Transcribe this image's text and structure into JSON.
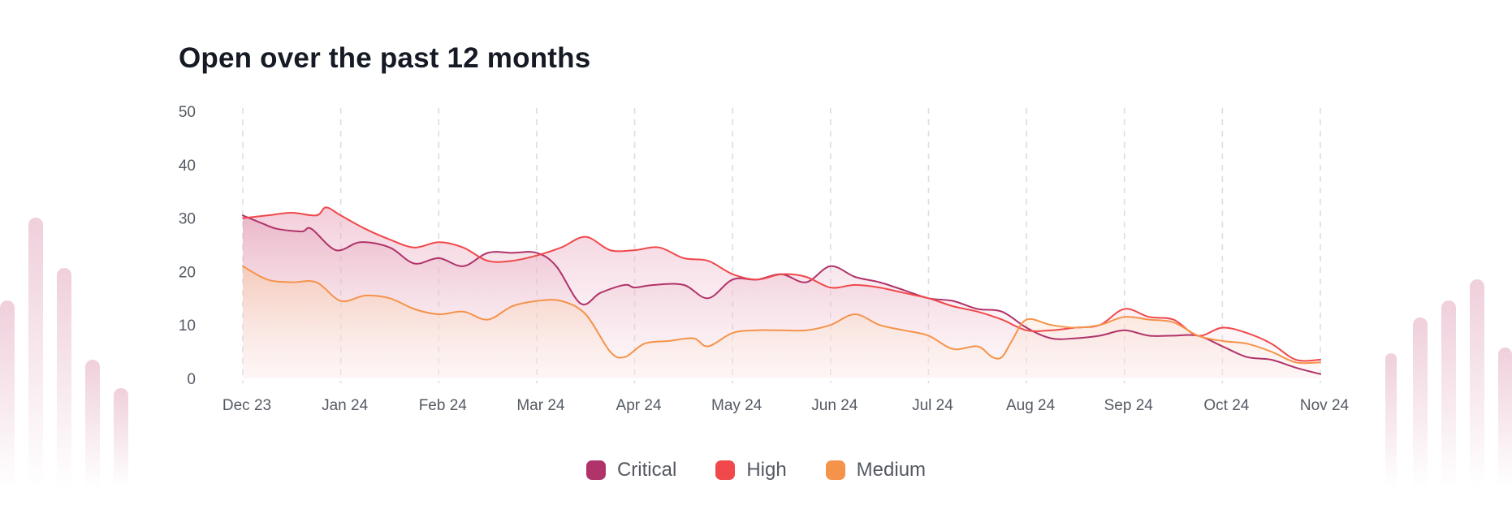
{
  "title": "Open over the past 12 months",
  "colors": {
    "critical": "#b0336a",
    "high": "#f0484b",
    "medium": "#f5934a",
    "grid": "#dcdde2",
    "text": "#555a63"
  },
  "chart_data": {
    "type": "line",
    "title": "Open over the past 12 months",
    "xlabel": "",
    "ylabel": "",
    "ylim": [
      0,
      50
    ],
    "yticks": [
      "0",
      "10",
      "20",
      "30",
      "40",
      "50"
    ],
    "categories": [
      "Dec 23",
      "Jan 24",
      "Feb 24",
      "Mar 24",
      "Apr 24",
      "May 24",
      "Jun 24",
      "Jul 24",
      "Aug 24",
      "Sep 24",
      "Oct 24",
      "Nov 24"
    ],
    "grid": "vertical-dashed",
    "legend": "bottom-center",
    "series": [
      {
        "name": "Critical",
        "color": "#b0336a",
        "x": [
          0,
          0.2,
          0.35,
          0.6,
          0.7,
          0.95,
          1.2,
          1.5,
          1.75,
          2.0,
          2.25,
          2.5,
          2.75,
          3.0,
          3.2,
          3.45,
          3.65,
          3.9,
          4.0,
          4.2,
          4.5,
          4.75,
          5.0,
          5.25,
          5.5,
          5.75,
          6.0,
          6.25,
          6.5,
          6.75,
          7.0,
          7.25,
          7.5,
          7.75,
          8.0,
          8.25,
          8.5,
          8.75,
          9.0,
          9.25,
          9.5,
          9.75,
          10.0,
          10.25,
          10.5,
          10.75,
          11.0
        ],
        "values": [
          30.5,
          29,
          28,
          27.5,
          28,
          24,
          25.5,
          24.5,
          21.5,
          22.5,
          21,
          23.5,
          23.5,
          23.5,
          21,
          14,
          16,
          17.5,
          17,
          17.5,
          17.5,
          15,
          18.5,
          18.5,
          19.5,
          18,
          21,
          19,
          18,
          16.5,
          15,
          14.5,
          13,
          12.5,
          9.5,
          7.5,
          7.5,
          8,
          9,
          8,
          8,
          8,
          6,
          4,
          3.5,
          2,
          0.8
        ]
      },
      {
        "name": "High",
        "color": "#f0484b",
        "x": [
          0,
          0.25,
          0.5,
          0.75,
          0.85,
          1.0,
          1.25,
          1.5,
          1.75,
          2.0,
          2.25,
          2.5,
          2.75,
          3.0,
          3.25,
          3.5,
          3.75,
          4.0,
          4.25,
          4.5,
          4.75,
          5.0,
          5.25,
          5.5,
          5.75,
          6.0,
          6.25,
          6.5,
          6.75,
          7.0,
          7.25,
          7.5,
          7.75,
          8.0,
          8.25,
          8.5,
          8.75,
          9.0,
          9.25,
          9.5,
          9.75,
          10.0,
          10.25,
          10.5,
          10.75,
          11.0
        ],
        "values": [
          30,
          30.5,
          31,
          30.5,
          32,
          30.5,
          28,
          26,
          24.5,
          25.5,
          24.5,
          22,
          22,
          23,
          24.5,
          26.5,
          24,
          24,
          24.5,
          22.5,
          22,
          19.5,
          18.5,
          19.5,
          19,
          17,
          17.5,
          17,
          16,
          15,
          13.5,
          12.5,
          11,
          9,
          9,
          9.5,
          10,
          13,
          11.5,
          11,
          8,
          9.5,
          8.5,
          6.5,
          3.5,
          3.5
        ]
      },
      {
        "name": "Medium",
        "color": "#f5934a",
        "x": [
          0,
          0.25,
          0.5,
          0.75,
          1.0,
          1.25,
          1.5,
          1.75,
          2.0,
          2.25,
          2.5,
          2.75,
          3.0,
          3.25,
          3.5,
          3.75,
          3.9,
          4.1,
          4.35,
          4.6,
          4.75,
          5.0,
          5.25,
          5.5,
          5.75,
          6.0,
          6.25,
          6.5,
          6.75,
          7.0,
          7.25,
          7.5,
          7.65,
          7.75,
          7.85,
          8.0,
          8.25,
          8.5,
          8.75,
          9.0,
          9.25,
          9.5,
          9.75,
          10.0,
          10.25,
          10.5,
          10.75,
          11.0
        ],
        "values": [
          21,
          18.5,
          18,
          18,
          14.5,
          15.5,
          15,
          13,
          12,
          12.5,
          11,
          13.5,
          14.5,
          14.5,
          12,
          5,
          4,
          6.5,
          7,
          7.5,
          6,
          8.5,
          9,
          9,
          9,
          10,
          12,
          10,
          9,
          8,
          5.5,
          6,
          4,
          4,
          7,
          11,
          10,
          9.5,
          10,
          11.5,
          11,
          10.5,
          8,
          7,
          6.5,
          5,
          3,
          3
        ]
      }
    ]
  },
  "legend": {
    "critical_label": "Critical",
    "high_label": "High",
    "medium_label": "Medium"
  }
}
